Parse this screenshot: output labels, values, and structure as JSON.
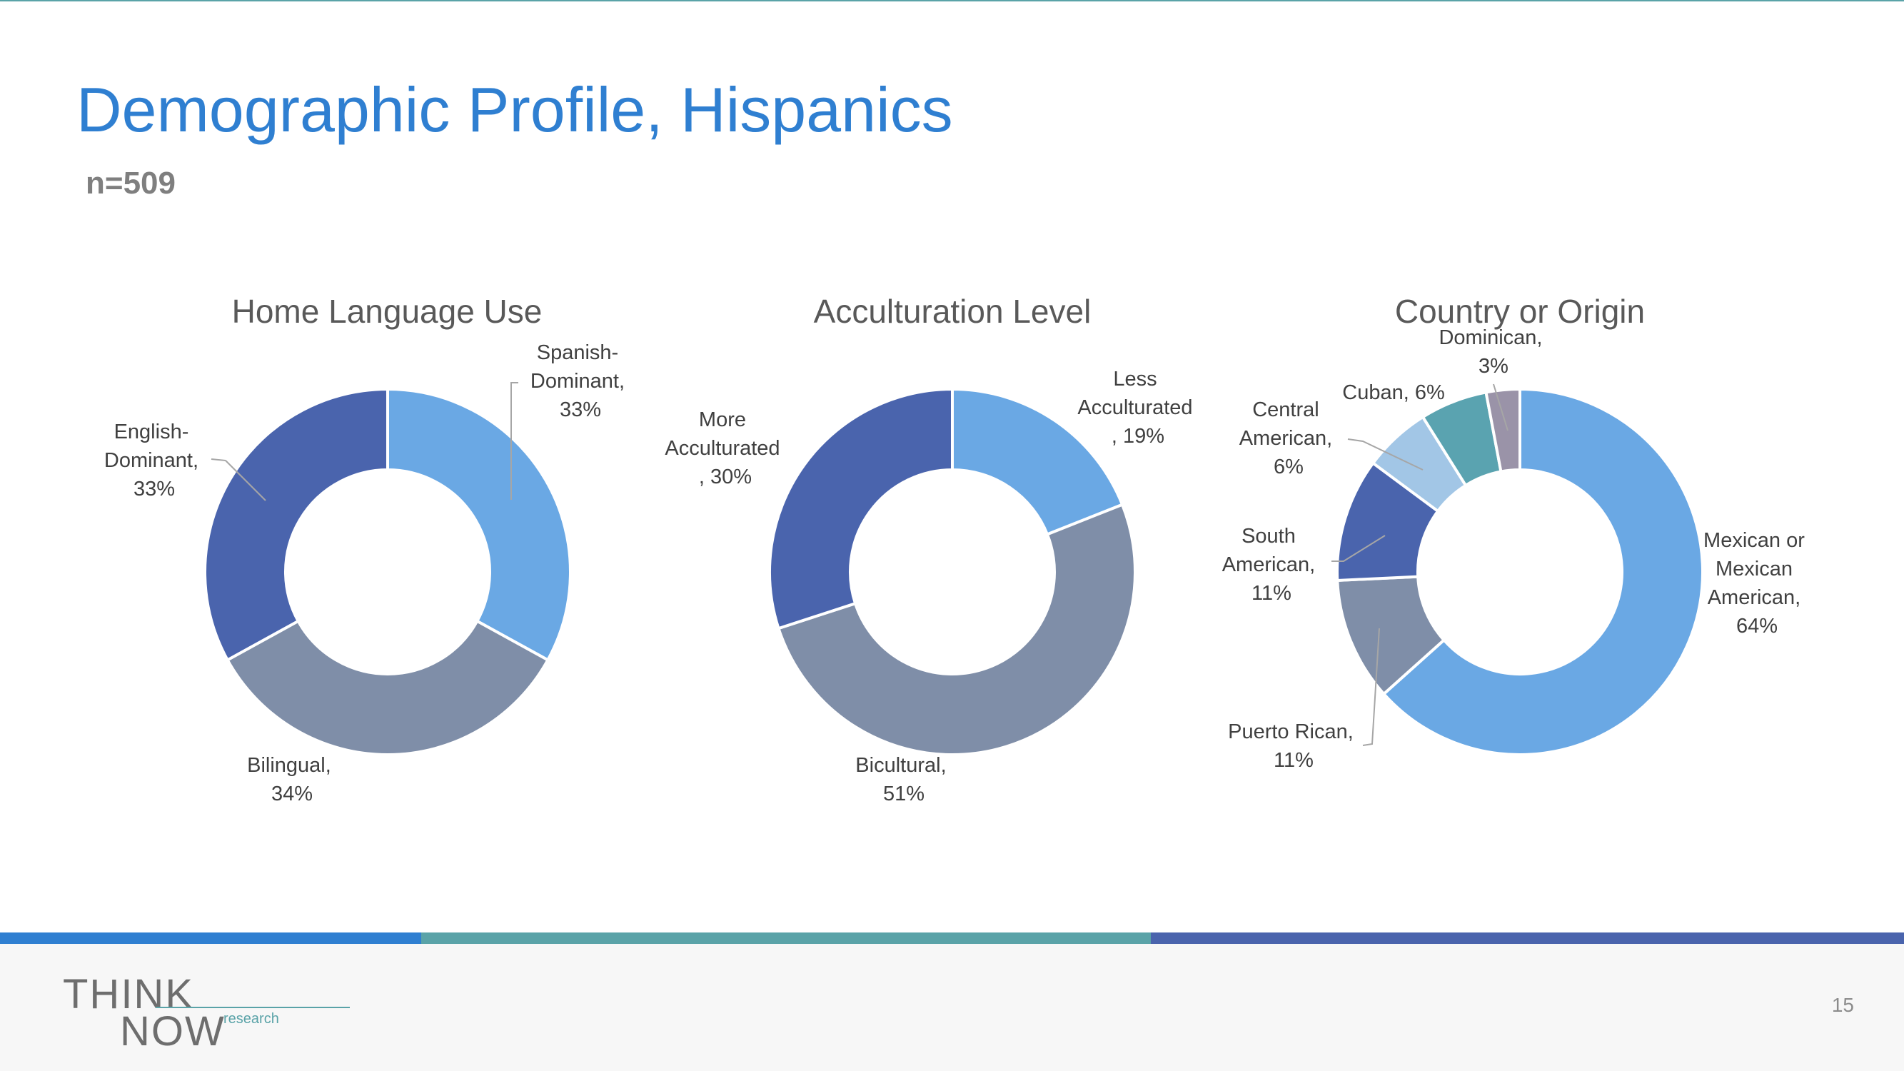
{
  "slide": {
    "title": "Demographic Profile, Hispanics",
    "subtitle": "n=509",
    "page_number": "15"
  },
  "logo": {
    "think": "THINK",
    "now": "NOW",
    "research": "research"
  },
  "colors": {
    "title": "#2f7fd1",
    "bar_blue": "#2f7fd1",
    "bar_teal": "#5aa3a8",
    "bar_indigo": "#4a64ad"
  },
  "chart_data": [
    {
      "type": "pie",
      "title": "Home Language Use",
      "slices": [
        {
          "name": "Spanish-Dominant",
          "value": 33,
          "color": "#6aa8e4",
          "label_lines": [
            "Spanish-",
            "Dominant,",
            "33%"
          ]
        },
        {
          "name": "Bilingual",
          "value": 34,
          "color": "#7f8ea8",
          "label_lines": [
            "Bilingual,",
            "34%"
          ]
        },
        {
          "name": "English-Dominant",
          "value": 33,
          "color": "#4a64ad",
          "label_lines": [
            "English-",
            "Dominant,",
            "33%"
          ]
        }
      ]
    },
    {
      "type": "pie",
      "title": "Acculturation Level",
      "slices": [
        {
          "name": "Less Acculturated",
          "value": 19,
          "color": "#6aa8e4",
          "label_lines": [
            "Less",
            "Acculturated",
            ", 19%"
          ]
        },
        {
          "name": "Bicultural",
          "value": 51,
          "color": "#7f8ea8",
          "label_lines": [
            "Bicultural,",
            "51%"
          ]
        },
        {
          "name": "More Acculturated",
          "value": 30,
          "color": "#4a64ad",
          "label_lines": [
            "More",
            "Acculturated",
            ", 30%"
          ]
        }
      ]
    },
    {
      "type": "pie",
      "title": "Country or Origin",
      "slices": [
        {
          "name": "Mexican or Mexican American",
          "value": 64,
          "color": "#6aa8e4",
          "label_lines": [
            "Mexican or",
            "Mexican",
            "American,",
            "64%"
          ]
        },
        {
          "name": "Puerto Rican",
          "value": 11,
          "color": "#7f8ea8",
          "label_lines": [
            "Puerto Rican,",
            "11%"
          ]
        },
        {
          "name": "South American",
          "value": 11,
          "color": "#4a64ad",
          "label_lines": [
            "South",
            "American,",
            "11%"
          ]
        },
        {
          "name": "Central American",
          "value": 6,
          "color": "#a2c6e6",
          "label_lines": [
            "Central",
            "American,",
            "6%"
          ]
        },
        {
          "name": "Cuban",
          "value": 6,
          "color": "#5aa3b0",
          "label_lines": [
            "Cuban, 6%"
          ]
        },
        {
          "name": "Dominican",
          "value": 3,
          "color": "#9a93a8",
          "label_lines": [
            "Dominican,",
            "3%"
          ]
        }
      ]
    }
  ]
}
